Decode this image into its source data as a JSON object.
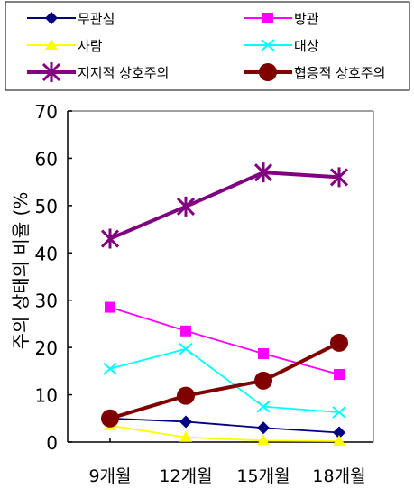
{
  "chart_data": {
    "type": "line",
    "categories": [
      "9개월",
      "12개월",
      "15개월",
      "18개월"
    ],
    "ylabel": "주의 상태의 비율 (%",
    "ylim": [
      0,
      70
    ],
    "yticks": [
      0,
      10,
      20,
      30,
      40,
      50,
      60,
      70
    ],
    "grid": false,
    "legend_position": "top",
    "series": [
      {
        "name": "무관심",
        "values": [
          5,
          4.3,
          3,
          2
        ],
        "color": "#000080",
        "marker": "diamond"
      },
      {
        "name": "방관",
        "values": [
          28.5,
          23.5,
          18.7,
          14.3
        ],
        "color": "#ff00ff",
        "marker": "square"
      },
      {
        "name": "사람",
        "values": [
          3.5,
          1,
          0.3,
          0.2
        ],
        "color": "#ffff00",
        "marker": "triangle"
      },
      {
        "name": "대상",
        "values": [
          15.5,
          19.7,
          7.5,
          6.3
        ],
        "color": "#00ffff",
        "marker": "x"
      },
      {
        "name": "지지적 상호주의",
        "values": [
          43,
          49.8,
          57,
          56
        ],
        "color": "#800080",
        "marker": "asterisk"
      },
      {
        "name": "협응적 상호주의",
        "values": [
          5,
          9.8,
          13,
          21
        ],
        "color": "#800000",
        "marker": "circle"
      }
    ]
  }
}
